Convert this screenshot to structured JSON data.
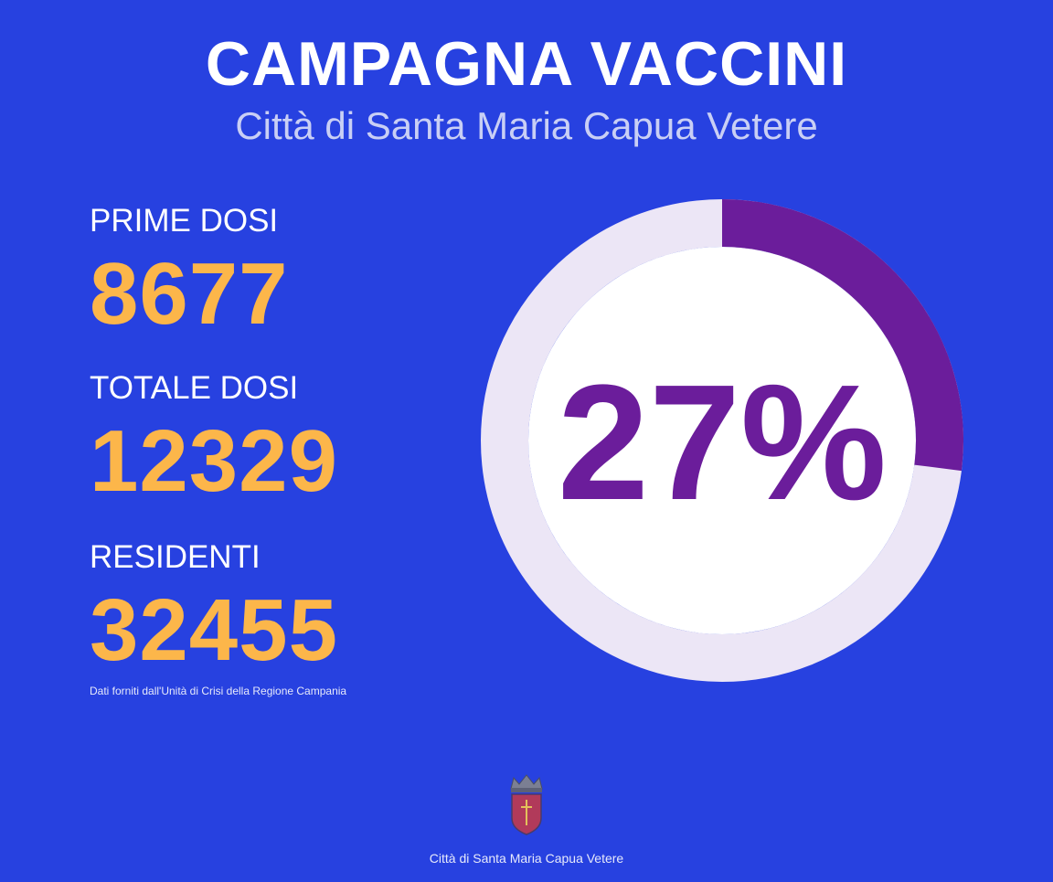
{
  "header": {
    "title": "CAMPAGNA VACCINI",
    "subtitle": "Città di Santa Maria Capua Vetere"
  },
  "stats": [
    {
      "label": "PRIME DOSI",
      "value": "8677"
    },
    {
      "label": "TOTALE DOSI",
      "value": "12329"
    },
    {
      "label": "RESIDENTI",
      "value": "32455"
    }
  ],
  "source_note": "Dati forniti dall'Unità di Crisi della Regione Campania",
  "chart_data": {
    "type": "pie",
    "center_label": "27%",
    "value_percent": 27,
    "colors": {
      "filled": "#6b1d9b",
      "track": "#ece6f6",
      "center": "#ffffff",
      "label": "#6b1d9b"
    }
  },
  "footer": {
    "text": "Città di Santa Maria Capua Vetere",
    "icon": "city-crest-icon"
  },
  "colors": {
    "background": "#2741e0",
    "title": "#ffffff",
    "subtitle": "#c9cff5",
    "value": "#fcb64a"
  }
}
